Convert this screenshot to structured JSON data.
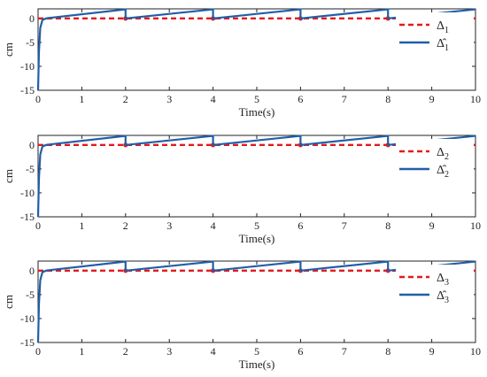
{
  "chart_data": [
    {
      "type": "line",
      "xlabel": "Time(s)",
      "ylabel": "cm",
      "xlim": [
        0,
        10
      ],
      "ylim": [
        -15,
        2
      ],
      "xticks": [
        "0",
        "1",
        "2",
        "3",
        "4",
        "5",
        "6",
        "7",
        "8",
        "9",
        "10"
      ],
      "yticks": [
        "-15",
        "-10",
        "-5",
        "0"
      ],
      "legend_position": "top-right",
      "series": [
        {
          "name_base": "Δ",
          "name_sub": "1",
          "style": "dashed",
          "color": "#e31a1c",
          "x": [
            0,
            0.1,
            2,
            2,
            4,
            4,
            6,
            6,
            8,
            8,
            10
          ],
          "y": [
            0,
            0,
            0,
            0,
            0,
            0,
            0,
            0,
            0,
            0,
            0
          ]
        },
        {
          "name_base": "Δ̂",
          "name_sub": "1",
          "style": "solid",
          "color": "#1f5fa8",
          "x": [
            0,
            0.02,
            0.05,
            0.1,
            0.2,
            2,
            2,
            4,
            4,
            6,
            6,
            8,
            8,
            10
          ],
          "y": [
            -15,
            -7,
            -2,
            -0.3,
            0.05,
            1.9,
            0,
            1.9,
            0,
            1.9,
            0,
            1.9,
            0,
            1.9
          ]
        }
      ]
    },
    {
      "type": "line",
      "xlabel": "Time(s)",
      "ylabel": "cm",
      "xlim": [
        0,
        10
      ],
      "ylim": [
        -15,
        2
      ],
      "xticks": [
        "0",
        "1",
        "2",
        "3",
        "4",
        "5",
        "6",
        "7",
        "8",
        "9",
        "10"
      ],
      "yticks": [
        "-15",
        "-10",
        "-5",
        "0"
      ],
      "legend_position": "top-right",
      "series": [
        {
          "name_base": "Δ",
          "name_sub": "2",
          "style": "dashed",
          "color": "#e31a1c",
          "x": [
            0,
            0.1,
            2,
            2,
            4,
            4,
            6,
            6,
            8,
            8,
            10
          ],
          "y": [
            0,
            0,
            0,
            0,
            0,
            0,
            0,
            0,
            0,
            0,
            0
          ]
        },
        {
          "name_base": "Δ̂",
          "name_sub": "2",
          "style": "solid",
          "color": "#1f5fa8",
          "x": [
            0,
            0.02,
            0.05,
            0.1,
            0.2,
            2,
            2,
            4,
            4,
            6,
            6,
            8,
            8,
            10
          ],
          "y": [
            -15,
            -7,
            -2,
            -0.3,
            0.05,
            1.9,
            0,
            1.9,
            0,
            1.9,
            0,
            1.9,
            0,
            1.9
          ]
        }
      ]
    },
    {
      "type": "line",
      "xlabel": "Time(s)",
      "ylabel": "cm",
      "xlim": [
        0,
        10
      ],
      "ylim": [
        -15,
        2
      ],
      "xticks": [
        "0",
        "1",
        "2",
        "3",
        "4",
        "5",
        "6",
        "7",
        "8",
        "9",
        "10"
      ],
      "yticks": [
        "-15",
        "-10",
        "-5",
        "0"
      ],
      "legend_position": "top-right",
      "series": [
        {
          "name_base": "Δ",
          "name_sub": "3",
          "style": "dashed",
          "color": "#e31a1c",
          "x": [
            0,
            0.1,
            2,
            2,
            4,
            4,
            6,
            6,
            8,
            8,
            10
          ],
          "y": [
            0,
            0,
            0,
            0,
            0,
            0,
            0,
            0,
            0,
            0,
            0
          ]
        },
        {
          "name_base": "Δ̂",
          "name_sub": "3",
          "style": "solid",
          "color": "#1f5fa8",
          "x": [
            0,
            0.02,
            0.05,
            0.1,
            0.2,
            2,
            2,
            4,
            4,
            6,
            6,
            8,
            8,
            10
          ],
          "y": [
            -15,
            -7,
            -2,
            -0.3,
            0.05,
            1.9,
            0,
            1.9,
            0,
            1.9,
            0,
            1.9,
            0,
            1.9
          ]
        }
      ]
    }
  ]
}
